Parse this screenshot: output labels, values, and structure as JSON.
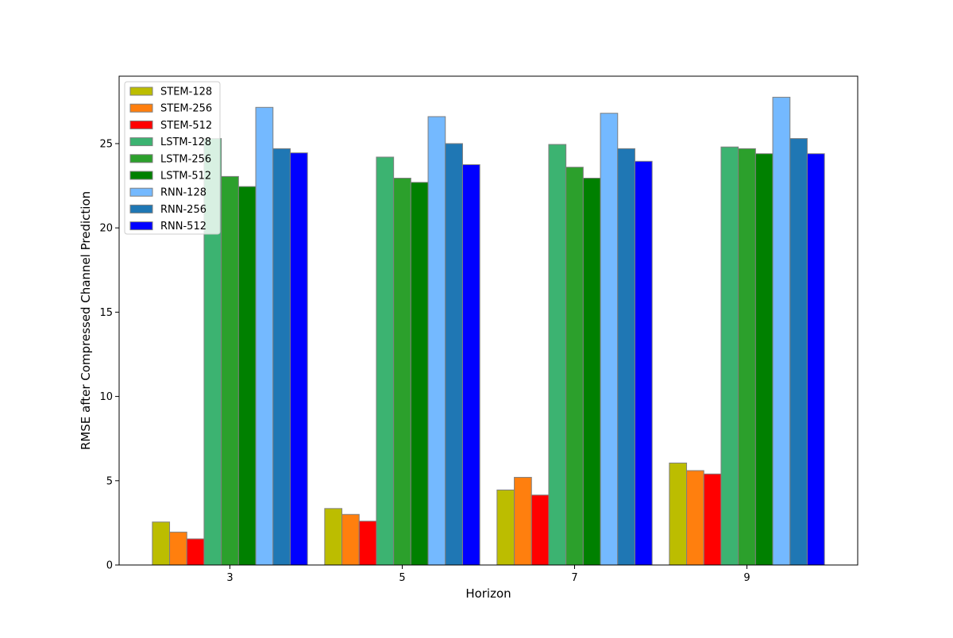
{
  "chart_data": {
    "type": "bar",
    "title": "",
    "xlabel": "Horizon",
    "ylabel": "RMSE after Compressed Channel Prediction",
    "categories": [
      "3",
      "5",
      "7",
      "9"
    ],
    "ylim": [
      0,
      29
    ],
    "yticks": [
      0,
      5,
      10,
      15,
      20,
      25
    ],
    "grid": false,
    "legend_position": "top-left",
    "series": [
      {
        "name": "STEM-128",
        "color": "#bcbd00",
        "values": [
          2.55,
          3.35,
          4.45,
          6.05
        ]
      },
      {
        "name": "STEM-256",
        "color": "#ff7f0e",
        "values": [
          1.95,
          3.0,
          5.2,
          5.6
        ]
      },
      {
        "name": "STEM-512",
        "color": "#ff0000",
        "values": [
          1.55,
          2.6,
          4.15,
          5.4
        ]
      },
      {
        "name": "LSTM-128",
        "color": "#3cb371",
        "values": [
          25.3,
          24.2,
          24.95,
          24.8
        ]
      },
      {
        "name": "LSTM-256",
        "color": "#2ca02c",
        "values": [
          23.05,
          22.95,
          23.6,
          24.7
        ]
      },
      {
        "name": "LSTM-512",
        "color": "#008000",
        "values": [
          22.45,
          22.7,
          22.95,
          24.4
        ]
      },
      {
        "name": "RNN-128",
        "color": "#74b9ff",
        "values": [
          27.15,
          26.6,
          26.8,
          27.75
        ]
      },
      {
        "name": "RNN-256",
        "color": "#1f77b4",
        "values": [
          24.7,
          25.0,
          24.7,
          25.3
        ]
      },
      {
        "name": "RNN-512",
        "color": "#0000ff",
        "values": [
          24.45,
          23.75,
          23.95,
          24.4
        ]
      }
    ]
  }
}
